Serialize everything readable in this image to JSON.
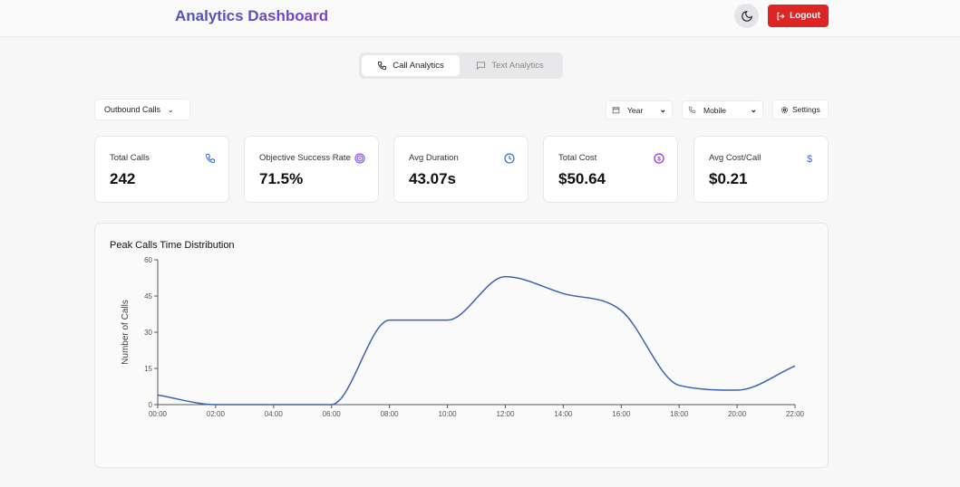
{
  "header": {
    "title": "Analytics Dashboard",
    "logout_label": "Logout"
  },
  "tabs": [
    {
      "label": "Call Analytics",
      "active": true
    },
    {
      "label": "Text Analytics",
      "active": false
    }
  ],
  "filters": {
    "call_type": "Outbound Calls",
    "period": "Year",
    "device": "Mobile",
    "settings_label": "Settings"
  },
  "stats": [
    {
      "label": "Total Calls",
      "value": "242",
      "icon": "phone-icon",
      "color": "#3b6fd8"
    },
    {
      "label": "Objective Success Rate",
      "value": "71.5%",
      "icon": "target-icon",
      "color": "#8b5cf6"
    },
    {
      "label": "Avg Duration",
      "value": "43.07s",
      "icon": "clock-icon",
      "color": "#3b6fd8"
    },
    {
      "label": "Total Cost",
      "value": "$50.64",
      "icon": "dollar-circle-icon",
      "color": "#9333ea"
    },
    {
      "label": "Avg Cost/Call",
      "value": "$0.21",
      "icon": "dollar-icon",
      "color": "#3b6fd8"
    }
  ],
  "chart_data": {
    "type": "line",
    "title": "Peak Calls Time Distribution",
    "ylabel": "Number of Calls",
    "xlabel": "",
    "x": [
      "00:00",
      "02:00",
      "04:00",
      "06:00",
      "08:00",
      "10:00",
      "12:00",
      "14:00",
      "16:00",
      "18:00",
      "20:00",
      "22:00"
    ],
    "values": [
      4,
      0,
      0,
      0,
      35,
      35,
      53,
      46,
      39,
      8,
      6,
      16
    ],
    "ylim": [
      0,
      60
    ],
    "yticks": [
      0,
      15,
      30,
      45,
      60
    ],
    "grid": false,
    "color": "#3a63b0"
  }
}
